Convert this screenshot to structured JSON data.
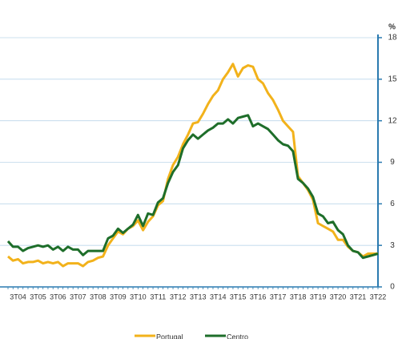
{
  "chart_data": {
    "type": "line",
    "y_unit": "%",
    "categories": [
      null,
      null,
      "3T04",
      null,
      null,
      null,
      "3T05",
      null,
      null,
      null,
      "3T06",
      null,
      null,
      null,
      "3T07",
      null,
      null,
      null,
      "3T08",
      null,
      null,
      null,
      "3T09",
      null,
      null,
      null,
      "3T10",
      null,
      null,
      null,
      "3T11",
      null,
      null,
      null,
      "3T12",
      null,
      null,
      null,
      "3T13",
      null,
      null,
      null,
      "3T14",
      null,
      null,
      null,
      "3T15",
      null,
      null,
      null,
      "3T16",
      null,
      null,
      null,
      "3T17",
      null,
      null,
      null,
      "3T18",
      null,
      null,
      null,
      "3T19",
      null,
      null,
      null,
      "3T20",
      null,
      null,
      null,
      "3T21",
      null,
      null,
      null,
      "3T22"
    ],
    "series": [
      {
        "name": "Portugal",
        "color": "#f2b21b",
        "values": [
          2.2,
          1.9,
          2.0,
          1.7,
          1.8,
          1.8,
          1.9,
          1.7,
          1.8,
          1.7,
          1.8,
          1.5,
          1.7,
          1.7,
          1.7,
          1.5,
          1.8,
          1.9,
          2.1,
          2.2,
          3.0,
          3.5,
          4.0,
          3.8,
          4.2,
          4.4,
          4.8,
          4.1,
          4.7,
          5.1,
          5.9,
          6.2,
          7.8,
          8.8,
          9.4,
          10.3,
          11.0,
          11.8,
          11.9,
          12.5,
          13.2,
          13.8,
          14.2,
          15.0,
          15.5,
          16.1,
          15.2,
          15.8,
          16.0,
          15.9,
          15.0,
          14.7,
          14.0,
          13.5,
          12.8,
          12.0,
          11.6,
          11.2,
          8.0,
          7.5,
          7.0,
          6.3,
          4.6,
          4.4,
          4.2,
          4.0,
          3.4,
          3.4,
          2.9,
          2.6,
          2.5,
          2.2,
          2.4,
          2.4,
          2.4
        ]
      },
      {
        "name": "Centro",
        "color": "#1e6e2a",
        "values": [
          3.3,
          2.9,
          2.9,
          2.6,
          2.8,
          2.9,
          3.0,
          2.9,
          3.0,
          2.7,
          2.9,
          2.6,
          2.9,
          2.7,
          2.7,
          2.3,
          2.6,
          2.6,
          2.6,
          2.6,
          3.5,
          3.7,
          4.2,
          3.9,
          4.2,
          4.5,
          5.2,
          4.4,
          5.3,
          5.2,
          6.1,
          6.4,
          7.5,
          8.3,
          8.8,
          10.0,
          10.6,
          11.0,
          10.7,
          11.0,
          11.3,
          11.5,
          11.8,
          11.8,
          12.1,
          11.8,
          12.2,
          12.3,
          12.4,
          11.6,
          11.8,
          11.6,
          11.4,
          11.0,
          10.6,
          10.3,
          10.2,
          9.8,
          7.8,
          7.5,
          7.1,
          6.5,
          5.3,
          5.1,
          4.6,
          4.7,
          4.1,
          3.8,
          3.0,
          2.6,
          2.5,
          2.1,
          2.2,
          2.3,
          2.4
        ]
      }
    ],
    "ylim": [
      0,
      18
    ],
    "yticks": [
      0,
      3,
      6,
      9,
      12,
      15,
      18
    ],
    "grid": true,
    "legend": "bottom"
  }
}
